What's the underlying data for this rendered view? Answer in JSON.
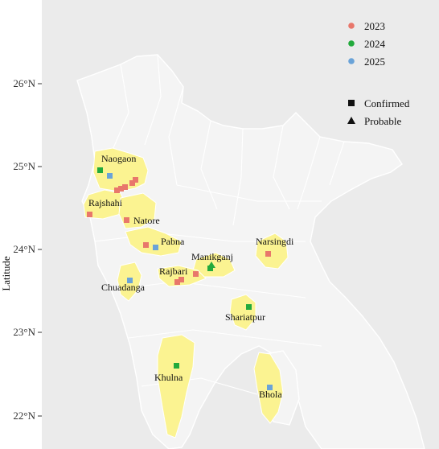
{
  "map": {
    "axis": {
      "ylabel": "Latitude",
      "yticks": [
        "26°N",
        "25°N",
        "24°N",
        "23°N",
        "22°N"
      ]
    },
    "colors": {
      "panel": "#ebebeb",
      "land": "#f4f4f4",
      "boundary": "#ffffff",
      "highlight": "#fbf391",
      "y2023": "#e8776b",
      "y2024": "#22aa3c",
      "y2025": "#6aa3d8"
    },
    "legend_years": {
      "items": [
        {
          "label": "2023",
          "color": "#e8776b"
        },
        {
          "label": "2024",
          "color": "#22aa3c"
        },
        {
          "label": "2025",
          "color": "#6aa3d8"
        }
      ]
    },
    "legend_status": {
      "items": [
        {
          "label": "Confirmed",
          "shape": "square"
        },
        {
          "label": "Probable",
          "shape": "triangle"
        }
      ]
    },
    "districts": [
      {
        "name": "Naogaon"
      },
      {
        "name": "Rajshahi"
      },
      {
        "name": "Natore"
      },
      {
        "name": "Pabna"
      },
      {
        "name": "Manikganj"
      },
      {
        "name": "Narsingdi"
      },
      {
        "name": "Rajbari"
      },
      {
        "name": "Chuadanga"
      },
      {
        "name": "Shariatpur"
      },
      {
        "name": "Khulna"
      },
      {
        "name": "Bhola"
      }
    ]
  }
}
